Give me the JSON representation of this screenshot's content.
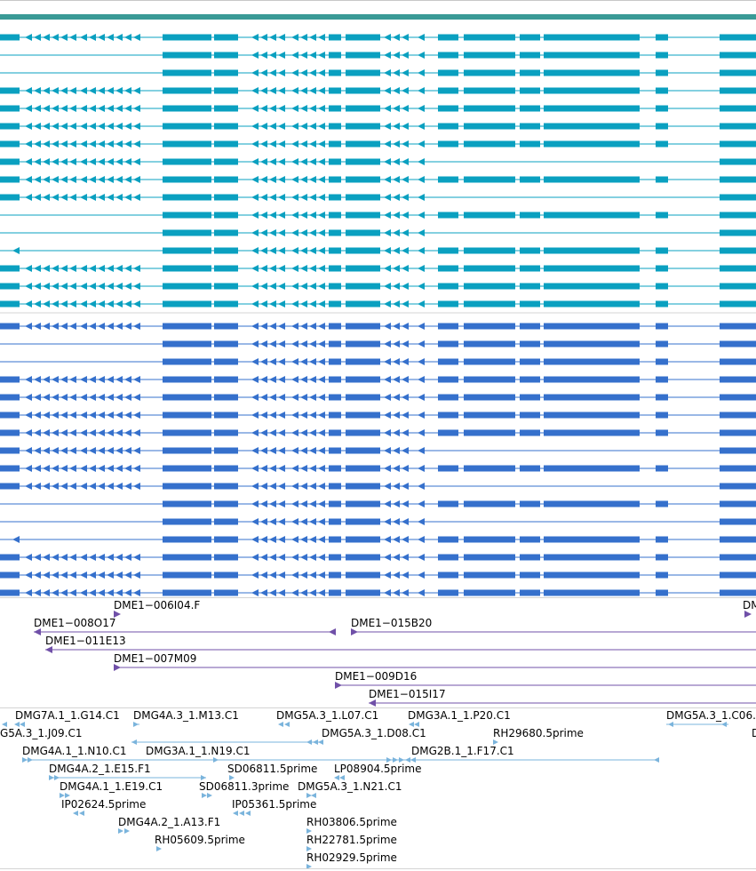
{
  "colors": {
    "top_band": "#3a9a96",
    "transcript_cyan": "#0aa0c0",
    "transcript_blue": "#3570cc",
    "cdna_purple": "#7050a8",
    "est_lightblue": "#7ab4dc",
    "separator": "#d4d4d4"
  },
  "cdna_labels": [
    "DME1−006I04.F",
    "DM",
    "DME1−008O17",
    "DME1−015B20",
    "DME1−011E13",
    "DME1−007M09",
    "DME1−009D16",
    "DME1−015I17"
  ],
  "est_labels": [
    "DMG7A.1_1.G14.C1",
    "DMG4A.3_1.M13.C1",
    "DMG5A.3_1.L07.C1",
    "DMG3A.1_1.P20.C1",
    "DMG5A.3_1.C06.",
    "G5A.3_1.J09.C1",
    "DMG5A.3_1.D08.C1",
    "RH29680.5prime",
    "D",
    "DMG4A.1_1.N10.C1",
    "DMG3A.1_1.N19.C1",
    "DMG2B.1_1.F17.C1",
    "DMG4A.2_1.E15.F1",
    "SD06811.5prime",
    "LP08904.5prime",
    "DMG4A.1_1.E19.C1",
    "SD06811.3prime",
    "DMG5A.3_1.N21.C1",
    "IP02624.5prime",
    "IP05361.5prime",
    "DMG4A.2_1.A13.F1",
    "RH03806.5prime",
    "RH05609.5prime",
    "RH22781.5prime",
    "RH02929.5prime"
  ]
}
